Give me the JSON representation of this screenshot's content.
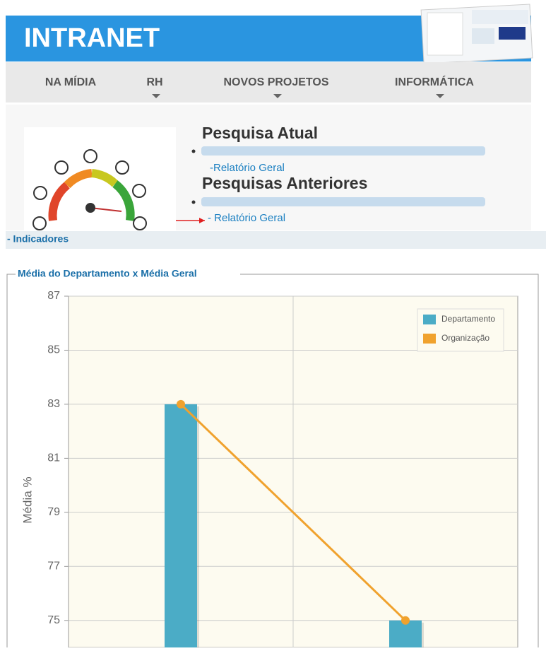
{
  "header": {
    "title": "INTRANET"
  },
  "nav": [
    "NA MÍDIA",
    "RH",
    "NOVOS PROJETOS",
    "INFORMÁTICA"
  ],
  "survey": {
    "current_title": "Pesquisa Atual",
    "current_link": "-Relatório Geral",
    "previous_title": "Pesquisas Anteriores",
    "previous_link": "- Relatório Geral"
  },
  "section": "- Indicadores",
  "chart_data": {
    "type": "bar-line",
    "title": "Média do Departamento x Média Geral",
    "y_label": "Média %",
    "categories": [
      null,
      null
    ],
    "series": [
      {
        "name": "Departamento",
        "type": "bar",
        "color": "#4bacc6",
        "values": [
          83,
          75
        ]
      },
      {
        "name": "Organização",
        "type": "line",
        "color": "#f0a22e",
        "values": [
          83,
          75
        ]
      }
    ],
    "ylim": [
      74,
      87
    ],
    "yticks": [
      75,
      77,
      79,
      81,
      83,
      85,
      87
    ],
    "grid": true,
    "legend": "top-right"
  }
}
